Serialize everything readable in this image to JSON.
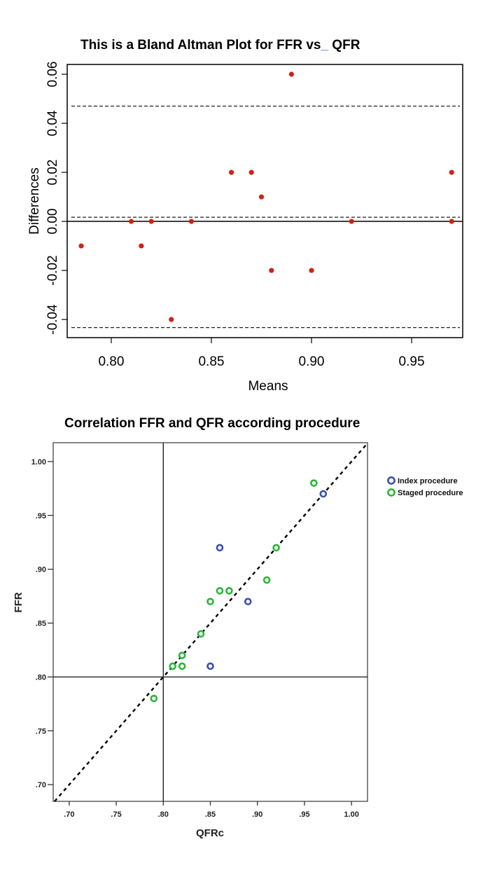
{
  "chart_data": [
    {
      "type": "scatter",
      "title": "This is a Bland Altman Plot for FFR vs",
      "title_underscore": "_",
      "title_suffix": " QFR",
      "xlabel": "Means",
      "ylabel": "Differences",
      "xlim": [
        0.778,
        0.9755
      ],
      "ylim": [
        -0.0474,
        0.064
      ],
      "xticks": [
        0.8,
        0.85,
        0.9,
        0.95
      ],
      "xtick_labels": [
        "0.80",
        "0.85",
        "0.90",
        "0.95"
      ],
      "yticks": [
        -0.04,
        -0.02,
        0.0,
        0.02,
        0.04,
        0.06
      ],
      "ytick_labels": [
        "-0.04",
        "-0.02",
        "0.00",
        "0.02",
        "0.04",
        "0.06"
      ],
      "grid": false,
      "point_color": "#d42010",
      "zero_line": 0,
      "reference_lines": [
        {
          "name": "upper-limit-of-agreement",
          "y": 0.047,
          "style": "dashed"
        },
        {
          "name": "mean-difference",
          "y": 0.0017,
          "style": "dashed"
        },
        {
          "name": "lower-limit-of-agreement",
          "y": -0.0433,
          "style": "dashed"
        }
      ],
      "points": [
        {
          "x": 0.785,
          "y": -0.01
        },
        {
          "x": 0.81,
          "y": 0.0
        },
        {
          "x": 0.815,
          "y": -0.01
        },
        {
          "x": 0.82,
          "y": 0.0
        },
        {
          "x": 0.83,
          "y": -0.04
        },
        {
          "x": 0.84,
          "y": 0.0
        },
        {
          "x": 0.86,
          "y": 0.02
        },
        {
          "x": 0.87,
          "y": 0.02
        },
        {
          "x": 0.875,
          "y": 0.01
        },
        {
          "x": 0.88,
          "y": -0.02
        },
        {
          "x": 0.89,
          "y": 0.06
        },
        {
          "x": 0.9,
          "y": -0.02
        },
        {
          "x": 0.92,
          "y": 0.0
        },
        {
          "x": 0.97,
          "y": 0.02
        },
        {
          "x": 0.97,
          "y": 0.0
        }
      ]
    },
    {
      "type": "scatter",
      "title": "Correlation FFR and QFR according procedure",
      "xlabel": "QFRc",
      "ylabel": "FFR",
      "xlim": [
        0.683,
        1.017
      ],
      "ylim": [
        0.6845,
        1.0175
      ],
      "xticks": [
        0.7,
        0.75,
        0.8,
        0.85,
        0.9,
        0.95,
        1.0
      ],
      "xtick_labels": [
        ".70",
        ".75",
        ".80",
        ".85",
        ".90",
        ".95",
        "1.00"
      ],
      "yticks": [
        0.7,
        0.75,
        0.8,
        0.85,
        0.9,
        0.95,
        1.0
      ],
      "ytick_labels": [
        ".70",
        ".75",
        ".80",
        ".85",
        ".90",
        ".95",
        "1.00"
      ],
      "grid": false,
      "reference_lines": [
        {
          "name": "cutoff-vertical",
          "x": 0.8,
          "style": "solid"
        },
        {
          "name": "cutoff-horizontal",
          "y": 0.8,
          "style": "solid"
        },
        {
          "name": "identity-line",
          "slope": 1,
          "intercept": 0,
          "style": "dashed"
        }
      ],
      "legend_position": "right",
      "series": [
        {
          "name": "Index procedure",
          "color": "#3a4fb0",
          "marker": "hollow-circle",
          "points": [
            {
              "x": 0.97,
              "y": 0.97
            },
            {
              "x": 0.86,
              "y": 0.92
            },
            {
              "x": 0.89,
              "y": 0.87
            },
            {
              "x": 0.85,
              "y": 0.81
            }
          ]
        },
        {
          "name": "Staged procedure",
          "color": "#2cb53a",
          "marker": "hollow-circle",
          "points": [
            {
              "x": 0.96,
              "y": 0.98
            },
            {
              "x": 0.92,
              "y": 0.92
            },
            {
              "x": 0.91,
              "y": 0.89
            },
            {
              "x": 0.86,
              "y": 0.88
            },
            {
              "x": 0.87,
              "y": 0.88
            },
            {
              "x": 0.85,
              "y": 0.87
            },
            {
              "x": 0.84,
              "y": 0.84
            },
            {
              "x": 0.82,
              "y": 0.82
            },
            {
              "x": 0.81,
              "y": 0.81
            },
            {
              "x": 0.82,
              "y": 0.81
            },
            {
              "x": 0.79,
              "y": 0.78
            }
          ]
        }
      ]
    }
  ]
}
